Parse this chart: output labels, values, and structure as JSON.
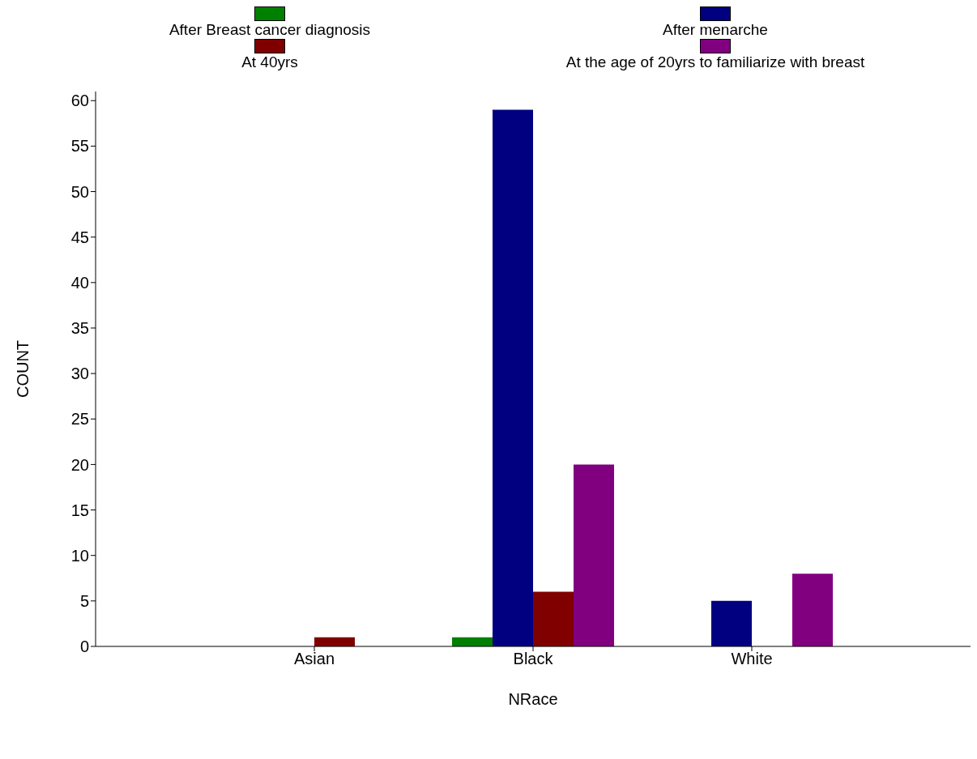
{
  "chart_data": {
    "type": "bar",
    "xlabel": "NRace",
    "ylabel": "COUNT",
    "categories": [
      "Asian",
      "Black",
      "White"
    ],
    "series": [
      {
        "name": "After Breast cancer diagnosis",
        "color": "#008000",
        "values": [
          0,
          1,
          0
        ]
      },
      {
        "name": "After menarche",
        "color": "#000080",
        "values": [
          0,
          59,
          5
        ]
      },
      {
        "name": "At 40yrs",
        "color": "#800000",
        "values": [
          1,
          6,
          0
        ]
      },
      {
        "name": "At the age of 20yrs to familiarize with breast",
        "color": "#800080",
        "values": [
          0,
          20,
          8
        ]
      }
    ],
    "ylim": [
      0,
      61
    ],
    "yticks": [
      0,
      5,
      10,
      15,
      20,
      25,
      30,
      35,
      40,
      45,
      50,
      55,
      60
    ],
    "legend": "top"
  }
}
